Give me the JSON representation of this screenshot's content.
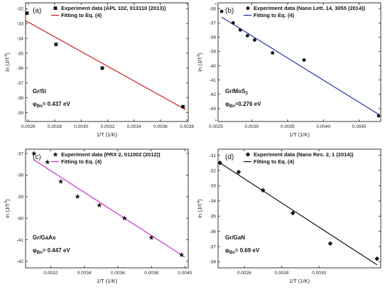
{
  "chart_data": [
    {
      "type": "scatter",
      "panel_label": "(a)",
      "xlabel": "1/T (1/K)",
      "ylabel": "ln (J/T",
      "ylabel_sup": "3",
      "ylabel_tail": ")",
      "xlim": [
        0.00258,
        0.00381
      ],
      "ylim": [
        -39.6,
        -31.6
      ],
      "xticks": [
        0.0026,
        0.0028,
        0.003,
        0.0032,
        0.0034,
        0.0036,
        0.0038
      ],
      "xtick_labels": [
        "0.0026",
        "0.0028",
        "0.0030",
        "0.0032",
        "0.0034",
        "0.0036",
        "0.0038"
      ],
      "yticks": [
        -32,
        -33,
        -34,
        -35,
        -36,
        -37,
        -38,
        -39
      ],
      "ytick_labels": [
        "-32",
        "-33",
        "-34",
        "-35",
        "-36",
        "-37",
        "-38",
        "-39"
      ],
      "marker": "square",
      "line_color": "#cc2222",
      "legend": [
        "Experiment data (APL 102, 013110 (2013))",
        "Fitting to Eq. (4)"
      ],
      "material": "Gr/Si",
      "barrier_symbol": "φ",
      "barrier_sub": "Bn",
      "barrier_value": "= 0.437 eV",
      "points": [
        {
          "x": 0.00259,
          "y": -32.3
        },
        {
          "x": 0.00281,
          "y": -34.4
        },
        {
          "x": 0.00316,
          "y": -36.0
        },
        {
          "x": 0.00377,
          "y": -38.6
        }
      ],
      "fit": [
        {
          "x": 0.00258,
          "y": -32.8
        },
        {
          "x": 0.00379,
          "y": -38.8
        }
      ]
    },
    {
      "type": "scatter",
      "panel_label": "(b)",
      "xlabel": "1/T (1/K)",
      "ylabel": "ln (J/T",
      "ylabel_sup": "3",
      "ylabel_tail": ")",
      "xlim": [
        0.00253,
        0.0048
      ],
      "ylim": [
        -43.9,
        -35.6
      ],
      "xticks": [
        0.0025,
        0.003,
        0.0035,
        0.004,
        0.0045
      ],
      "xtick_labels": [
        "0.0025",
        "0.0030",
        "0.0035",
        "0.0040",
        "0.0045"
      ],
      "yticks": [
        -36,
        -37,
        -38,
        -39,
        -40,
        -41,
        -42,
        -43
      ],
      "ytick_labels": [
        "-36",
        "-37",
        "-38",
        "-39",
        "-40",
        "-41",
        "-42",
        "-43"
      ],
      "marker": "circle",
      "line_color": "#2233aa",
      "legend": [
        "Experiment data (Nano Lett. 14, 3055 (2014))",
        "Fitting to Eq. (4)"
      ],
      "material": "Gr/MoS",
      "material_sub": "2",
      "barrier_symbol": "φ",
      "barrier_sub": "Bn",
      "barrier_value": "=0.276 eV",
      "points": [
        {
          "x": 0.00258,
          "y": -36.2
        },
        {
          "x": 0.00274,
          "y": -37.0
        },
        {
          "x": 0.00284,
          "y": -37.5
        },
        {
          "x": 0.00294,
          "y": -37.9
        },
        {
          "x": 0.00304,
          "y": -38.2
        },
        {
          "x": 0.00329,
          "y": -39.1
        },
        {
          "x": 0.00373,
          "y": -39.6
        },
        {
          "x": 0.00477,
          "y": -43.5
        }
      ],
      "fit": [
        {
          "x": 0.00258,
          "y": -36.6
        },
        {
          "x": 0.00477,
          "y": -43.4
        }
      ]
    },
    {
      "type": "scatter",
      "panel_label": "(c)",
      "xlabel": "1/T (1/K)",
      "ylabel": "ln (J/T",
      "ylabel_sup": "3",
      "ylabel_tail": ")",
      "xlim": [
        0.00305,
        0.00402
      ],
      "ylim": [
        -42.3,
        -36.8
      ],
      "xticks": [
        0.0032,
        0.0034,
        0.0036,
        0.0038,
        0.004
      ],
      "xtick_labels": [
        "0.0032",
        "0.0034",
        "0.0036",
        "0.0038",
        "0.0040"
      ],
      "yticks": [
        -37,
        -38,
        -39,
        -40,
        -41,
        -42
      ],
      "ytick_labels": [
        "-37",
        "-38",
        "-39",
        "-40",
        "-41",
        "-42"
      ],
      "marker": "star",
      "line_color": "#cc33cc",
      "legend": [
        "Experiment data (PRX 2, 011002 (2012))",
        "Fitting to Eq. (4)"
      ],
      "material": "Gr/GaAs",
      "barrier_symbol": "φ",
      "barrier_sub": "Bn",
      "barrier_value": "= 0.447 eV",
      "points": [
        {
          "x": 0.0031,
          "y": -37.0
        },
        {
          "x": 0.00318,
          "y": -37.4
        },
        {
          "x": 0.00326,
          "y": -38.3
        },
        {
          "x": 0.00336,
          "y": -39.0
        },
        {
          "x": 0.00349,
          "y": -39.4
        },
        {
          "x": 0.00364,
          "y": -40.0
        },
        {
          "x": 0.0038,
          "y": -40.9
        },
        {
          "x": 0.00398,
          "y": -41.7
        }
      ],
      "fit": [
        {
          "x": 0.0031,
          "y": -37.3
        },
        {
          "x": 0.004,
          "y": -41.8
        }
      ]
    },
    {
      "type": "scatter",
      "panel_label": "(d)",
      "xlabel": "1/T (1/K)",
      "ylabel": "ln (J/T",
      "ylabel_sup": "3",
      "ylabel_tail": ")",
      "xlim": [
        0.00246,
        0.00333
      ],
      "ylim": [
        -38.4,
        -30.6
      ],
      "xticks": [
        0.0026,
        0.0028,
        0.003
      ],
      "xtick_labels": [
        "0.0026",
        "0.0028",
        "0.0030"
      ],
      "yticks": [
        -31,
        -32,
        -33,
        -34,
        -35,
        -36,
        -37,
        -38
      ],
      "ytick_labels": [
        "-31",
        "-32",
        "-33",
        "-34",
        "-35",
        "-36",
        "-37",
        "-38"
      ],
      "marker": "diamond",
      "line_color": "#111111",
      "legend": [
        "Experiment data (Nano Res. 2, 1 (2014))",
        "Fitting to Eq. (4)"
      ],
      "material": "Gr/GaN",
      "barrier_symbol": "φ",
      "barrier_sub": "Bn",
      "barrier_value": "= 0.69 eV",
      "points": [
        {
          "x": 0.00247,
          "y": -31.5
        },
        {
          "x": 0.00257,
          "y": -32.1
        },
        {
          "x": 0.0027,
          "y": -33.3
        },
        {
          "x": 0.00286,
          "y": -34.8
        },
        {
          "x": 0.00306,
          "y": -36.8
        },
        {
          "x": 0.00331,
          "y": -37.8
        }
      ],
      "fit": [
        {
          "x": 0.00247,
          "y": -31.5
        },
        {
          "x": 0.00331,
          "y": -38.2
        }
      ]
    }
  ]
}
